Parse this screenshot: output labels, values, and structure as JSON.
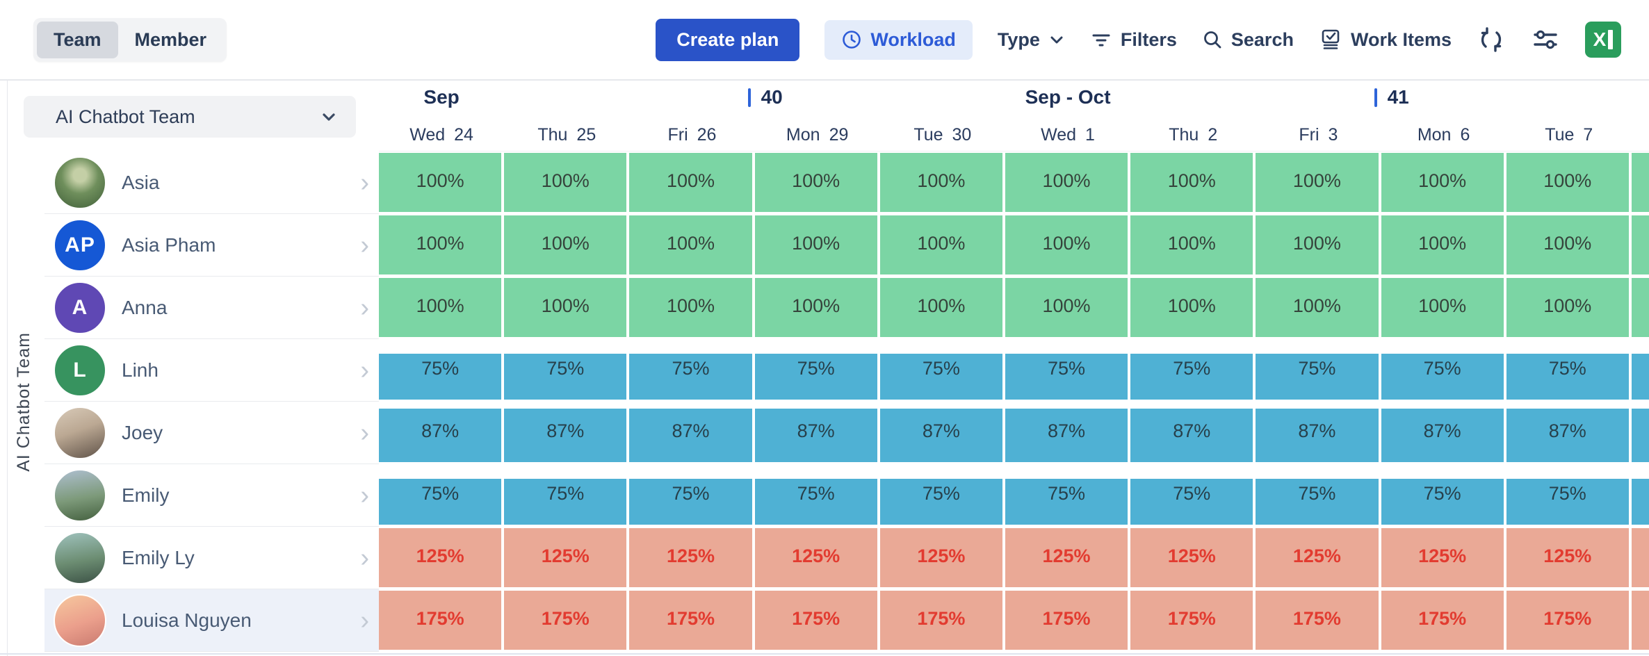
{
  "toolbar": {
    "view_toggle": {
      "options": [
        "Team",
        "Member"
      ],
      "selected": "Team"
    },
    "create_plan_label": "Create plan",
    "workload_label": "Workload",
    "type_label": "Type",
    "filters_label": "Filters",
    "search_label": "Search",
    "work_items_label": "Work Items",
    "icons": [
      "sync-icon",
      "sliders-icon",
      "excel-export-icon"
    ],
    "colors": {
      "primary_button_bg": "#2a53c8",
      "workload_chip_bg": "#e4ecfa",
      "workload_text": "#2d5bd7"
    }
  },
  "sidebar": {
    "team_selector_value": "AI Chatbot Team",
    "vertical_group_label": "AI Chatbot Team"
  },
  "grid": {
    "bands": [
      {
        "type": "month",
        "label": "Sep",
        "col": 0
      },
      {
        "type": "week",
        "label": "40",
        "col": 3
      },
      {
        "type": "month",
        "label": "Sep - Oct",
        "col": 5
      },
      {
        "type": "week",
        "label": "41",
        "col": 8
      }
    ],
    "days": [
      {
        "dow": "Wed",
        "num": "24"
      },
      {
        "dow": "Thu",
        "num": "25"
      },
      {
        "dow": "Fri",
        "num": "26"
      },
      {
        "dow": "Mon",
        "num": "29"
      },
      {
        "dow": "Tue",
        "num": "30"
      },
      {
        "dow": "Wed",
        "num": "1"
      },
      {
        "dow": "Thu",
        "num": "2"
      },
      {
        "dow": "Fri",
        "num": "3"
      },
      {
        "dow": "Mon",
        "num": "6"
      },
      {
        "dow": "Tue",
        "num": "7"
      }
    ],
    "week_tick_color": "#2e64d9",
    "status_colors": {
      "full": "#7bd5a4",
      "under": "#4fb1d4",
      "over": "#eaa996",
      "over_text": "#e23b30"
    }
  },
  "members": [
    {
      "name": "Asia",
      "avatar": {
        "type": "photo",
        "photo": "asia"
      },
      "status": "full",
      "pct": 100,
      "selected": false,
      "values": [
        "100%",
        "100%",
        "100%",
        "100%",
        "100%",
        "100%",
        "100%",
        "100%",
        "100%",
        "100%"
      ]
    },
    {
      "name": "Asia Pham",
      "avatar": {
        "type": "initials",
        "initials": "AP",
        "bg": "#1558d5"
      },
      "status": "full",
      "pct": 100,
      "selected": false,
      "values": [
        "100%",
        "100%",
        "100%",
        "100%",
        "100%",
        "100%",
        "100%",
        "100%",
        "100%",
        "100%"
      ]
    },
    {
      "name": "Anna",
      "avatar": {
        "type": "initials",
        "initials": "A",
        "bg": "#5f48b4"
      },
      "status": "full",
      "pct": 100,
      "selected": false,
      "values": [
        "100%",
        "100%",
        "100%",
        "100%",
        "100%",
        "100%",
        "100%",
        "100%",
        "100%",
        "100%"
      ]
    },
    {
      "name": "Linh",
      "avatar": {
        "type": "initials",
        "initials": "L",
        "bg": "#37935f"
      },
      "status": "under",
      "pct": 75,
      "selected": false,
      "values": [
        "75%",
        "75%",
        "75%",
        "75%",
        "75%",
        "75%",
        "75%",
        "75%",
        "75%",
        "75%"
      ]
    },
    {
      "name": "Joey",
      "avatar": {
        "type": "photo",
        "photo": "joey"
      },
      "status": "under",
      "pct": 87,
      "selected": false,
      "values": [
        "87%",
        "87%",
        "87%",
        "87%",
        "87%",
        "87%",
        "87%",
        "87%",
        "87%",
        "87%"
      ]
    },
    {
      "name": "Emily",
      "avatar": {
        "type": "photo",
        "photo": "emily"
      },
      "status": "under",
      "pct": 75,
      "selected": false,
      "values": [
        "75%",
        "75%",
        "75%",
        "75%",
        "75%",
        "75%",
        "75%",
        "75%",
        "75%",
        "75%"
      ]
    },
    {
      "name": "Emily Ly",
      "avatar": {
        "type": "photo",
        "photo": "emilyly"
      },
      "status": "over",
      "pct": 125,
      "selected": false,
      "values": [
        "125%",
        "125%",
        "125%",
        "125%",
        "125%",
        "125%",
        "125%",
        "125%",
        "125%",
        "125%"
      ]
    },
    {
      "name": "Louisa Nguyen",
      "avatar": {
        "type": "photo",
        "photo": "louisa"
      },
      "status": "over",
      "pct": 175,
      "selected": true,
      "values": [
        "175%",
        "175%",
        "175%",
        "175%",
        "175%",
        "175%",
        "175%",
        "175%",
        "175%",
        "175%"
      ]
    }
  ]
}
